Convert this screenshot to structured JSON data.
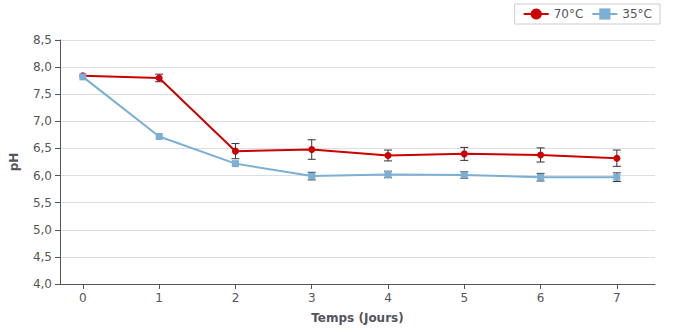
{
  "chart_data": {
    "type": "line",
    "xlabel": "Temps (Jours)",
    "ylabel": "pH",
    "x": [
      0,
      1,
      2,
      3,
      4,
      5,
      6,
      7
    ],
    "series": [
      {
        "name": "70°C",
        "color": "#cc0000",
        "marker": "circle",
        "values": [
          7.84,
          7.8,
          6.45,
          6.48,
          6.37,
          6.4,
          6.38,
          6.32
        ],
        "errors": [
          0.0,
          0.07,
          0.14,
          0.18,
          0.1,
          0.12,
          0.13,
          0.15
        ]
      },
      {
        "name": "35°C",
        "color": "#7bafd4",
        "marker": "square",
        "values": [
          7.82,
          6.72,
          6.22,
          5.99,
          6.02,
          6.01,
          5.97,
          5.97
        ],
        "errors": [
          0.0,
          0.0,
          0.0,
          0.07,
          0.06,
          0.06,
          0.07,
          0.08
        ]
      }
    ],
    "xlim": [
      -0.3,
      7.5
    ],
    "ylim": [
      4.0,
      8.5
    ],
    "xticks": [
      0,
      1,
      2,
      3,
      4,
      5,
      6,
      7
    ],
    "yticks": [
      {
        "value": 4.0,
        "label": "4,0"
      },
      {
        "value": 4.5,
        "label": "4,5"
      },
      {
        "value": 5.0,
        "label": "5,0"
      },
      {
        "value": 5.5,
        "label": "5,5"
      },
      {
        "value": 6.0,
        "label": "6,0"
      },
      {
        "value": 6.5,
        "label": "6,5"
      },
      {
        "value": 7.0,
        "label": "7,0"
      },
      {
        "value": 7.5,
        "label": "7,5"
      },
      {
        "value": 8.0,
        "label": "8,0"
      },
      {
        "value": 8.5,
        "label": "8,5"
      }
    ],
    "grid": "y",
    "legend": "upper right"
  }
}
